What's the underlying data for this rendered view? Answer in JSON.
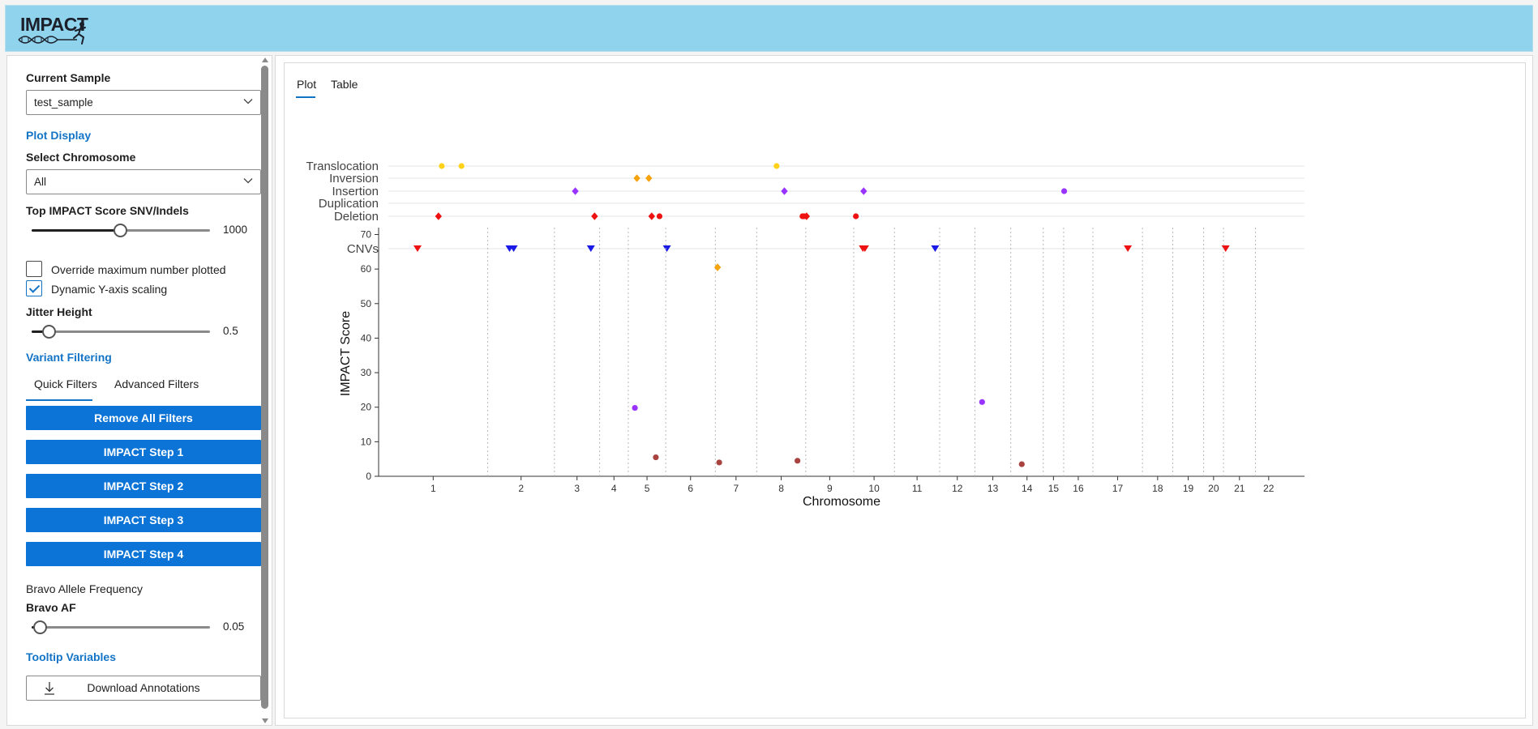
{
  "header": {
    "logo_text": "IMPACT"
  },
  "sidebar": {
    "current_sample_label": "Current Sample",
    "current_sample_value": "test_sample",
    "plot_display_heading": "Plot Display",
    "select_chromosome_label": "Select Chromosome",
    "select_chromosome_value": "All",
    "top_score_label": "Top IMPACT Score SNV/Indels",
    "top_score_value": "1000",
    "top_score_fraction": 0.5,
    "override_label": "Override maximum number plotted",
    "override_checked": false,
    "dynamic_y_label": "Dynamic Y-axis scaling",
    "dynamic_y_checked": true,
    "jitter_label": "Jitter Height",
    "jitter_value": "0.5",
    "jitter_fraction": 0.1,
    "variant_filtering_heading": "Variant Filtering",
    "filter_tabs": [
      {
        "label": "Quick Filters",
        "active": true
      },
      {
        "label": "Advanced Filters",
        "active": false
      }
    ],
    "buttons": {
      "remove_all": "Remove All Filters",
      "step1": "IMPACT Step 1",
      "step2": "IMPACT Step 2",
      "step3": "IMPACT Step 3",
      "step4": "IMPACT Step 4"
    },
    "bravo_heading": "Bravo Allele Frequency",
    "bravo_af_label": "Bravo AF",
    "bravo_af_value": "0.05",
    "bravo_af_fraction": 0.05,
    "tooltip_heading": "Tooltip Variables",
    "download_label": "Download Annotations"
  },
  "main": {
    "tabs": [
      {
        "label": "Plot",
        "active": true
      },
      {
        "label": "Table",
        "active": false
      }
    ]
  },
  "colors": {
    "accent": "#1374c6",
    "button": "#0c74d6",
    "header_bg": "#8fd3ec",
    "translocation": "#ffd21a",
    "inversion": "#f5a30f",
    "insertion": "#9933ff",
    "deletion": "#ee1111",
    "cnv_red": "#ee1111",
    "cnv_blue": "#1a1ae6",
    "snv": "#a8433f"
  },
  "chart_data": [
    {
      "type": "scatter",
      "name": "structural-variants-track",
      "categories": [
        "Translocation",
        "Inversion",
        "Insertion",
        "Duplication",
        "Deletion",
        "CNVs"
      ],
      "x_domain": [
        0,
        22.3
      ],
      "series": [
        {
          "name": "Translocation",
          "marker": "circle",
          "color": "#ffd21a",
          "x": [
            1.3,
            1.78,
            9.45
          ]
        },
        {
          "name": "Inversion",
          "marker": "diamond",
          "color": "#f5a30f",
          "x": [
            6.05,
            6.34
          ]
        },
        {
          "name": "Insertion",
          "marker": "diamond",
          "color": "#9933ff",
          "x": [
            4.55,
            9.64,
            11.57
          ]
        },
        {
          "name": "Insertion",
          "marker": "circle",
          "color": "#9933ff",
          "x": [
            16.45
          ]
        },
        {
          "name": "Deletion",
          "marker": "diamond",
          "color": "#ee1111",
          "x": [
            1.22,
            5.02,
            6.41,
            10.18
          ]
        },
        {
          "name": "Deletion",
          "marker": "circle",
          "color": "#ee1111",
          "x": [
            6.6,
            10.08,
            10.12,
            11.38
          ]
        },
        {
          "name": "CNVs",
          "marker": "triangle-down",
          "color": "#ee1111",
          "x": [
            0.71,
            11.55,
            11.6,
            18.0,
            20.38
          ]
        },
        {
          "name": "CNVs",
          "marker": "triangle-down",
          "color": "#1a1ae6",
          "x": [
            2.95,
            3.05,
            4.93,
            6.78,
            13.31
          ]
        }
      ]
    },
    {
      "type": "scatter",
      "name": "impact-score-plot",
      "xlabel": "Chromosome",
      "ylabel": "IMPACT Score",
      "ylim": [
        0,
        72
      ],
      "yticks": [
        0,
        10,
        20,
        30,
        40,
        50,
        60,
        70
      ],
      "chromosomes": [
        "1",
        "2",
        "3",
        "4",
        "5",
        "6",
        "7",
        "8",
        "9",
        "10",
        "11",
        "12",
        "13",
        "14",
        "15",
        "16",
        "17",
        "18",
        "19",
        "20",
        "21",
        "22"
      ],
      "chromosome_boundaries": [
        1.98,
        3.19,
        4.01,
        4.53,
        5.21,
        6.11,
        6.86,
        7.75,
        8.62,
        9.36,
        10.18,
        10.82,
        11.47,
        12.06,
        12.43,
        12.96,
        13.86,
        14.41,
        14.97,
        15.33,
        15.91,
        16.39
      ],
      "x_domain": [
        0,
        16.8
      ],
      "points": [
        {
          "x": 6.15,
          "y": 60.5,
          "marker": "diamond",
          "color": "#f5a30f"
        },
        {
          "x": 4.65,
          "y": 19.8,
          "marker": "circle",
          "color": "#9933ff"
        },
        {
          "x": 10.95,
          "y": 21.5,
          "marker": "circle",
          "color": "#9933ff"
        },
        {
          "x": 5.03,
          "y": 5.5,
          "marker": "circle",
          "color": "#a8433f"
        },
        {
          "x": 6.18,
          "y": 4.0,
          "marker": "circle",
          "color": "#a8433f"
        },
        {
          "x": 7.6,
          "y": 4.5,
          "marker": "circle",
          "color": "#a8433f"
        },
        {
          "x": 11.67,
          "y": 3.5,
          "marker": "circle",
          "color": "#a8433f"
        }
      ],
      "grid": "vertical-dotted"
    }
  ]
}
